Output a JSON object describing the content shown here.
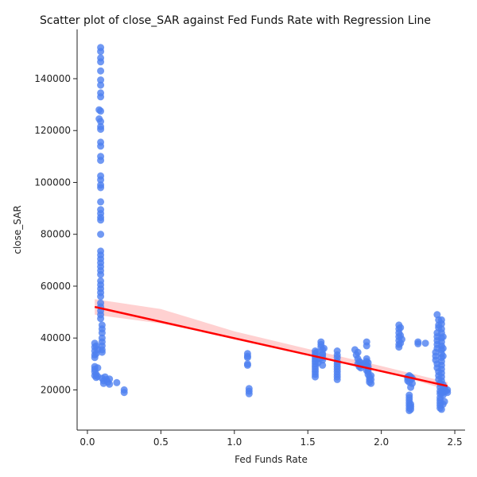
{
  "chart_data": {
    "type": "scatter",
    "title": "Scatter plot of close_SAR against Fed Funds Rate with Regression Line",
    "xlabel": "Fed Funds Rate",
    "ylabel": "close_SAR",
    "xlim": [
      -0.07,
      2.57
    ],
    "ylim": [
      4500,
      159000
    ],
    "xticks": [
      0.0,
      0.5,
      1.0,
      1.5,
      2.0,
      2.5
    ],
    "xtick_labels": [
      "0.0",
      "0.5",
      "1.0",
      "1.5",
      "2.0",
      "2.5"
    ],
    "yticks": [
      20000,
      40000,
      60000,
      80000,
      100000,
      120000,
      140000
    ],
    "ytick_labels": [
      "20000",
      "40000",
      "60000",
      "80000",
      "100000",
      "120000",
      "140000"
    ],
    "grid": false,
    "point_color": "#4d7ff0",
    "line_color": "#ff0000",
    "band_color": "#ffb3b3",
    "regression": {
      "x": [
        0.05,
        2.45
      ],
      "y": [
        52000,
        21500
      ]
    },
    "confidence_band": {
      "x": [
        0.05,
        0.5,
        1.0,
        1.5,
        2.0,
        2.45
      ],
      "lower": [
        49000,
        45600,
        39800,
        33800,
        27400,
        20000
      ],
      "upper": [
        55000,
        51200,
        42600,
        35800,
        29200,
        23000
      ]
    },
    "points": [
      [
        0.09,
        152000
      ],
      [
        0.09,
        150500
      ],
      [
        0.09,
        148000
      ],
      [
        0.09,
        146500
      ],
      [
        0.09,
        143000
      ],
      [
        0.09,
        139500
      ],
      [
        0.09,
        137500
      ],
      [
        0.09,
        134500
      ],
      [
        0.09,
        133000
      ],
      [
        0.08,
        128000
      ],
      [
        0.09,
        127500
      ],
      [
        0.08,
        124500
      ],
      [
        0.09,
        123500
      ],
      [
        0.09,
        121500
      ],
      [
        0.09,
        120500
      ],
      [
        0.09,
        115500
      ],
      [
        0.09,
        114000
      ],
      [
        0.09,
        110000
      ],
      [
        0.09,
        108500
      ],
      [
        0.09,
        102500
      ],
      [
        0.09,
        101000
      ],
      [
        0.09,
        99000
      ],
      [
        0.09,
        98000
      ],
      [
        0.09,
        92500
      ],
      [
        0.09,
        89500
      ],
      [
        0.09,
        88000
      ],
      [
        0.09,
        86500
      ],
      [
        0.09,
        85500
      ],
      [
        0.09,
        80000
      ],
      [
        0.09,
        73500
      ],
      [
        0.09,
        72000
      ],
      [
        0.09,
        70500
      ],
      [
        0.09,
        69000
      ],
      [
        0.09,
        67500
      ],
      [
        0.09,
        66000
      ],
      [
        0.09,
        64500
      ],
      [
        0.09,
        62000
      ],
      [
        0.09,
        60500
      ],
      [
        0.09,
        59000
      ],
      [
        0.09,
        57500
      ],
      [
        0.09,
        56000
      ],
      [
        0.09,
        53500
      ],
      [
        0.09,
        52000
      ],
      [
        0.09,
        50500
      ],
      [
        0.09,
        49000
      ],
      [
        0.09,
        47500
      ],
      [
        0.1,
        45000
      ],
      [
        0.1,
        43500
      ],
      [
        0.1,
        42000
      ],
      [
        0.1,
        40000
      ],
      [
        0.1,
        38500
      ],
      [
        0.1,
        37000
      ],
      [
        0.1,
        35500
      ],
      [
        0.1,
        34500
      ],
      [
        0.05,
        38000
      ],
      [
        0.05,
        36500
      ],
      [
        0.05,
        35000
      ],
      [
        0.05,
        33500
      ],
      [
        0.05,
        32500
      ],
      [
        0.06,
        37000
      ],
      [
        0.07,
        35500
      ],
      [
        0.06,
        34000
      ],
      [
        0.05,
        29000
      ],
      [
        0.05,
        28000
      ],
      [
        0.05,
        27000
      ],
      [
        0.06,
        26000
      ],
      [
        0.05,
        25500
      ],
      [
        0.06,
        24800
      ],
      [
        0.07,
        25200
      ],
      [
        0.07,
        28500
      ],
      [
        0.1,
        24500
      ],
      [
        0.11,
        23500
      ],
      [
        0.11,
        22500
      ],
      [
        0.12,
        25000
      ],
      [
        0.13,
        24000
      ],
      [
        0.14,
        23000
      ],
      [
        0.15,
        22200
      ],
      [
        0.15,
        24200
      ],
      [
        0.2,
        22800
      ],
      [
        0.25,
        20000
      ],
      [
        0.25,
        19000
      ],
      [
        1.09,
        34000
      ],
      [
        1.09,
        33000
      ],
      [
        1.09,
        32500
      ],
      [
        1.09,
        30000
      ],
      [
        1.09,
        29500
      ],
      [
        1.1,
        20500
      ],
      [
        1.1,
        19500
      ],
      [
        1.1,
        18500
      ],
      [
        1.55,
        35000
      ],
      [
        1.55,
        34000
      ],
      [
        1.55,
        33000
      ],
      [
        1.55,
        32000
      ],
      [
        1.55,
        31000
      ],
      [
        1.55,
        30000
      ],
      [
        1.55,
        29000
      ],
      [
        1.55,
        28000
      ],
      [
        1.55,
        27000
      ],
      [
        1.55,
        26000
      ],
      [
        1.55,
        25000
      ],
      [
        1.56,
        34500
      ],
      [
        1.57,
        30500
      ],
      [
        1.58,
        32000
      ],
      [
        1.59,
        38500
      ],
      [
        1.59,
        37500
      ],
      [
        1.59,
        36500
      ],
      [
        1.6,
        35500
      ],
      [
        1.6,
        34000
      ],
      [
        1.6,
        33500
      ],
      [
        1.6,
        32500
      ],
      [
        1.6,
        31500
      ],
      [
        1.6,
        29500
      ],
      [
        1.61,
        36000
      ],
      [
        1.7,
        35000
      ],
      [
        1.7,
        33500
      ],
      [
        1.7,
        32500
      ],
      [
        1.7,
        31000
      ],
      [
        1.7,
        30000
      ],
      [
        1.7,
        29000
      ],
      [
        1.7,
        28000
      ],
      [
        1.7,
        27000
      ],
      [
        1.7,
        26000
      ],
      [
        1.7,
        25000
      ],
      [
        1.7,
        24000
      ],
      [
        1.82,
        35500
      ],
      [
        1.83,
        33500
      ],
      [
        1.84,
        32000
      ],
      [
        1.84,
        34500
      ],
      [
        1.85,
        31000
      ],
      [
        1.84,
        30000
      ],
      [
        1.85,
        29000
      ],
      [
        1.86,
        28500
      ],
      [
        1.86,
        30500
      ],
      [
        1.87,
        29500
      ],
      [
        1.88,
        30000
      ],
      [
        1.9,
        38500
      ],
      [
        1.9,
        37000
      ],
      [
        1.9,
        32000
      ],
      [
        1.9,
        31000
      ],
      [
        1.91,
        30500
      ],
      [
        1.91,
        29000
      ],
      [
        1.91,
        28000
      ],
      [
        1.91,
        27000
      ],
      [
        1.91,
        26000
      ],
      [
        1.92,
        25000
      ],
      [
        1.92,
        24000
      ],
      [
        1.92,
        23000
      ],
      [
        1.93,
        22500
      ],
      [
        1.93,
        24000
      ],
      [
        1.93,
        25500
      ],
      [
        1.9,
        27500
      ],
      [
        1.9,
        29500
      ],
      [
        2.12,
        45000
      ],
      [
        2.12,
        43500
      ],
      [
        2.12,
        42000
      ],
      [
        2.12,
        40500
      ],
      [
        2.12,
        39000
      ],
      [
        2.12,
        37500
      ],
      [
        2.12,
        36500
      ],
      [
        2.13,
        44000
      ],
      [
        2.13,
        41000
      ],
      [
        2.13,
        38000
      ],
      [
        2.14,
        39500
      ],
      [
        2.18,
        25000
      ],
      [
        2.18,
        24500
      ],
      [
        2.18,
        23500
      ],
      [
        2.19,
        25500
      ],
      [
        2.19,
        23000
      ],
      [
        2.2,
        21000
      ],
      [
        2.2,
        24000
      ],
      [
        2.2,
        25000
      ],
      [
        2.21,
        22500
      ],
      [
        2.21,
        24500
      ],
      [
        2.19,
        18000
      ],
      [
        2.19,
        17000
      ],
      [
        2.19,
        16000
      ],
      [
        2.19,
        15000
      ],
      [
        2.19,
        14000
      ],
      [
        2.19,
        13000
      ],
      [
        2.19,
        12000
      ],
      [
        2.2,
        14500
      ],
      [
        2.2,
        13500
      ],
      [
        2.2,
        12500
      ],
      [
        2.25,
        38500
      ],
      [
        2.25,
        37800
      ],
      [
        2.3,
        38000
      ],
      [
        2.38,
        49000
      ],
      [
        2.39,
        47000
      ],
      [
        2.39,
        45000
      ],
      [
        2.39,
        44000
      ],
      [
        2.38,
        42000
      ],
      [
        2.38,
        40500
      ],
      [
        2.38,
        39000
      ],
      [
        2.38,
        37500
      ],
      [
        2.38,
        36000
      ],
      [
        2.37,
        34500
      ],
      [
        2.37,
        33000
      ],
      [
        2.37,
        31500
      ],
      [
        2.38,
        30000
      ],
      [
        2.38,
        28500
      ],
      [
        2.39,
        27000
      ],
      [
        2.39,
        25500
      ],
      [
        2.39,
        24000
      ],
      [
        2.4,
        22500
      ],
      [
        2.4,
        21000
      ],
      [
        2.4,
        19500
      ],
      [
        2.41,
        47000
      ],
      [
        2.41,
        45500
      ],
      [
        2.41,
        43500
      ],
      [
        2.41,
        42000
      ],
      [
        2.41,
        40000
      ],
      [
        2.41,
        38500
      ],
      [
        2.41,
        37000
      ],
      [
        2.41,
        35500
      ],
      [
        2.41,
        34000
      ],
      [
        2.41,
        32500
      ],
      [
        2.41,
        31000
      ],
      [
        2.41,
        29500
      ],
      [
        2.41,
        28000
      ],
      [
        2.41,
        26500
      ],
      [
        2.41,
        25000
      ],
      [
        2.41,
        23500
      ],
      [
        2.42,
        22000
      ],
      [
        2.42,
        20500
      ],
      [
        2.42,
        19000
      ],
      [
        2.42,
        18000
      ],
      [
        2.4,
        17000
      ],
      [
        2.4,
        16000
      ],
      [
        2.4,
        15000
      ],
      [
        2.4,
        14000
      ],
      [
        2.4,
        13000
      ],
      [
        2.41,
        12500
      ],
      [
        2.42,
        14500
      ],
      [
        2.43,
        15500
      ],
      [
        2.42,
        40500
      ],
      [
        2.42,
        36000
      ],
      [
        2.42,
        33000
      ],
      [
        2.43,
        20000
      ],
      [
        2.44,
        19500
      ],
      [
        2.45,
        20000
      ],
      [
        2.45,
        19000
      ],
      [
        2.43,
        21000
      ],
      [
        2.41,
        19000
      ],
      [
        2.4,
        18500
      ]
    ]
  }
}
